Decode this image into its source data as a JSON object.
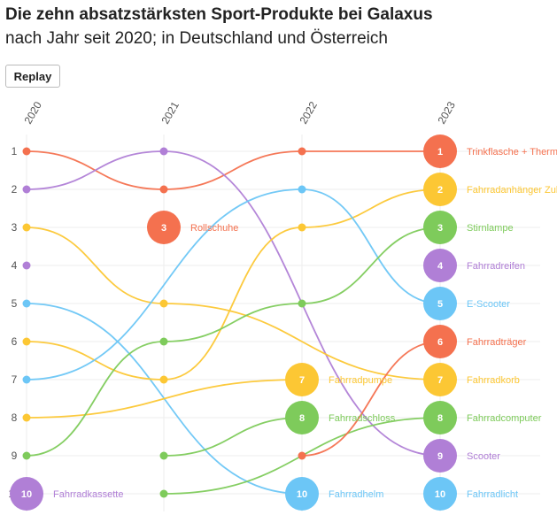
{
  "header": {
    "title": "Die zehn absatzstärksten Sport-Produkte bei Galaxus",
    "subtitle": "nach Jahr seit 2020; in Deutschland und Österreich"
  },
  "controls": {
    "replay_label": "Replay"
  },
  "colors": {
    "red": "#f4714f",
    "purple": "#b07fd6",
    "yellow": "#fcc734",
    "blue": "#6cc6f6",
    "green": "#7ecb5b",
    "grid": "#eeeeee",
    "axis_text": "#555555"
  },
  "chart_data": {
    "type": "bump",
    "x": [
      "2020",
      "2021",
      "2022",
      "2023"
    ],
    "ranks": [
      "1",
      "2",
      "3",
      "4",
      "5",
      "6",
      "7",
      "8",
      "9",
      "10"
    ],
    "y_reversed": true,
    "series": [
      {
        "color": "#f4714f",
        "ranks": [
          1,
          2,
          1,
          1
        ],
        "label": "Trinkflasche + Thermo"
      },
      {
        "color": "#b07fd6",
        "ranks": [
          2,
          1,
          null,
          9
        ],
        "label": "Scooter"
      },
      {
        "color": "#fcc734",
        "ranks": [
          3,
          5,
          null,
          7
        ],
        "label": "Fahrradkorb"
      },
      {
        "color": "#b07fd6",
        "ranks": [
          4,
          null,
          null,
          null
        ]
      },
      {
        "color": "#6cc6f6",
        "ranks": [
          5,
          null,
          10,
          null
        ],
        "label": "Fahrradhelm"
      },
      {
        "color": "#fcc734",
        "ranks": [
          6,
          7,
          3,
          2
        ],
        "label": "Fahrradanhänger Zube"
      },
      {
        "color": "#6cc6f6",
        "ranks": [
          7,
          null,
          2,
          5
        ],
        "label": "E-Scooter"
      },
      {
        "color": "#fcc734",
        "ranks": [
          8,
          null,
          7,
          null
        ],
        "label": "Fahrradpumpe"
      },
      {
        "color": "#7ecb5b",
        "ranks": [
          9,
          6,
          5,
          3
        ],
        "label": "Stirnlampe"
      },
      {
        "color": "#b07fd6",
        "ranks": [
          10,
          null,
          null,
          null
        ],
        "label": "Fahrradkassette"
      },
      {
        "color": "#f4714f",
        "ranks": [
          null,
          3,
          null,
          null
        ],
        "label": "Rollschuhe"
      },
      {
        "color": "#7ecb5b",
        "ranks": [
          null,
          9,
          8,
          null
        ],
        "label": "Fahrradschloss"
      },
      {
        "color": "#7ecb5b",
        "ranks": [
          null,
          10,
          null,
          8
        ],
        "label": "Fahrradcomputer"
      },
      {
        "color": "#f4714f",
        "ranks": [
          null,
          null,
          9,
          6
        ],
        "label": "Fahrradträger"
      },
      {
        "color": "#b07fd6",
        "ranks": [
          null,
          null,
          null,
          4
        ],
        "label": "Fahrradreifen"
      },
      {
        "color": "#6cc6f6",
        "ranks": [
          null,
          null,
          null,
          10
        ],
        "label": "Fahrradlicht"
      }
    ],
    "labeled_points": [
      {
        "series": 0,
        "year": 3,
        "rank": 1
      },
      {
        "series": 5,
        "year": 3,
        "rank": 2
      },
      {
        "series": 8,
        "year": 3,
        "rank": 3
      },
      {
        "series": 14,
        "year": 3,
        "rank": 4
      },
      {
        "series": 6,
        "year": 3,
        "rank": 5
      },
      {
        "series": 13,
        "year": 3,
        "rank": 6
      },
      {
        "series": 2,
        "year": 3,
        "rank": 7
      },
      {
        "series": 12,
        "year": 3,
        "rank": 8
      },
      {
        "series": 1,
        "year": 3,
        "rank": 9
      },
      {
        "series": 15,
        "year": 3,
        "rank": 10
      },
      {
        "series": 10,
        "year": 1,
        "rank": 3
      },
      {
        "series": 7,
        "year": 2,
        "rank": 7
      },
      {
        "series": 11,
        "year": 2,
        "rank": 8
      },
      {
        "series": 4,
        "year": 2,
        "rank": 10
      },
      {
        "series": 9,
        "year": 0,
        "rank": 10
      }
    ]
  }
}
